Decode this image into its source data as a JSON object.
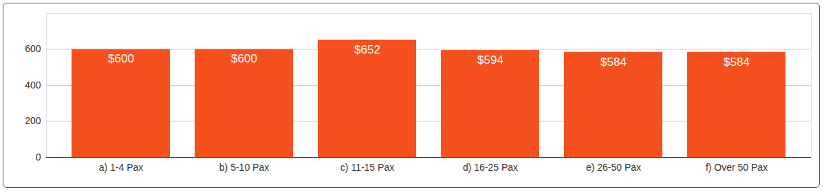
{
  "chart_data": {
    "type": "bar",
    "categories": [
      "a) 1-4 Pax",
      "b) 5-10 Pax",
      "c) 11-15 Pax",
      "d) 16-25 Pax",
      "e) 26-50 Pax",
      "f) Over 50 Pax"
    ],
    "values": [
      600,
      600,
      652,
      594,
      584,
      584
    ],
    "value_labels": [
      "$600",
      "$600",
      "$652",
      "$594",
      "$584",
      "$584"
    ],
    "data_labels": true,
    "color": "#f4511e",
    "ylim": [
      0,
      800
    ],
    "yticks": [
      0,
      200,
      400,
      600
    ],
    "grid": true
  }
}
